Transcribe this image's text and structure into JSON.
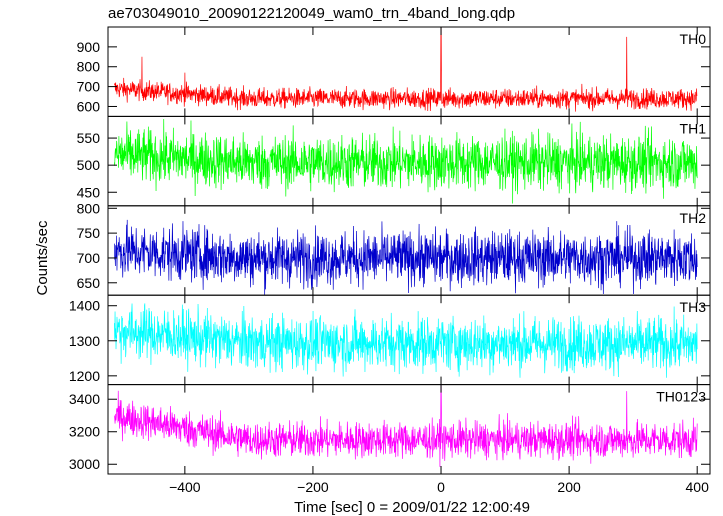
{
  "title": "ae703049010_20090122120049_wam0_trn_4band_long.qdp",
  "chart_data": {
    "type": "line",
    "title": "ae703049010_20090122120049_wam0_trn_4band_long.qdp",
    "xlabel": "Time [sec] 0 = 2009/01/22 12:00:49",
    "ylabel": "Counts/sec",
    "xlim": [
      -520,
      420
    ],
    "xticks": [
      -400,
      -200,
      0,
      200,
      400
    ],
    "xtick_labels": [
      "−400",
      "−200",
      "0",
      "200",
      "400"
    ],
    "grid": false,
    "panels": [
      {
        "name": "TH0",
        "color": "#ff0000",
        "ylim": [
          550,
          1000
        ],
        "yticks": [
          600,
          700,
          800,
          900
        ],
        "series": {
          "x_start": -510,
          "x_end": 400,
          "samples": 1820,
          "mean_start": 690,
          "mean_mid": 640,
          "mean_end": 640,
          "sigma": 25,
          "spikes": [
            {
              "x": -467,
              "y": 850
            },
            {
              "x": -400,
              "y": 770
            },
            {
              "x": 0,
              "y": 1000
            },
            {
              "x": 290,
              "y": 950
            }
          ]
        }
      },
      {
        "name": "TH1",
        "color": "#00ff00",
        "ylim": [
          425,
          590
        ],
        "yticks": [
          450,
          500,
          550
        ],
        "series": {
          "x_start": -510,
          "x_end": 400,
          "samples": 1820,
          "mean_start": 520,
          "mean_mid": 505,
          "mean_end": 505,
          "sigma": 25,
          "spikes": []
        }
      },
      {
        "name": "TH2",
        "color": "#0000cc",
        "ylim": [
          625,
          805
        ],
        "yticks": [
          650,
          700,
          750,
          800
        ],
        "series": {
          "x_start": -510,
          "x_end": 400,
          "samples": 1820,
          "mean_start": 715,
          "mean_mid": 700,
          "mean_end": 700,
          "sigma": 27,
          "spikes": []
        }
      },
      {
        "name": "TH3",
        "color": "#00ffff",
        "ylim": [
          1175,
          1430
        ],
        "yticks": [
          1200,
          1300,
          1400
        ],
        "series": {
          "x_start": -510,
          "x_end": 400,
          "samples": 1820,
          "mean_start": 1330,
          "mean_mid": 1295,
          "mean_end": 1290,
          "sigma": 38,
          "spikes": []
        }
      },
      {
        "name": "TH0123",
        "color": "#ff00ff",
        "ylim": [
          2940,
          3490
        ],
        "yticks": [
          3000,
          3200,
          3400
        ],
        "series": {
          "x_start": -510,
          "x_end": 400,
          "samples": 1820,
          "mean_start": 3300,
          "mean_mid": 3150,
          "mean_end": 3150,
          "sigma": 55,
          "spikes": [
            {
              "x": 0,
              "y": 3490
            },
            {
              "x": 290,
              "y": 3450
            }
          ]
        }
      }
    ]
  }
}
